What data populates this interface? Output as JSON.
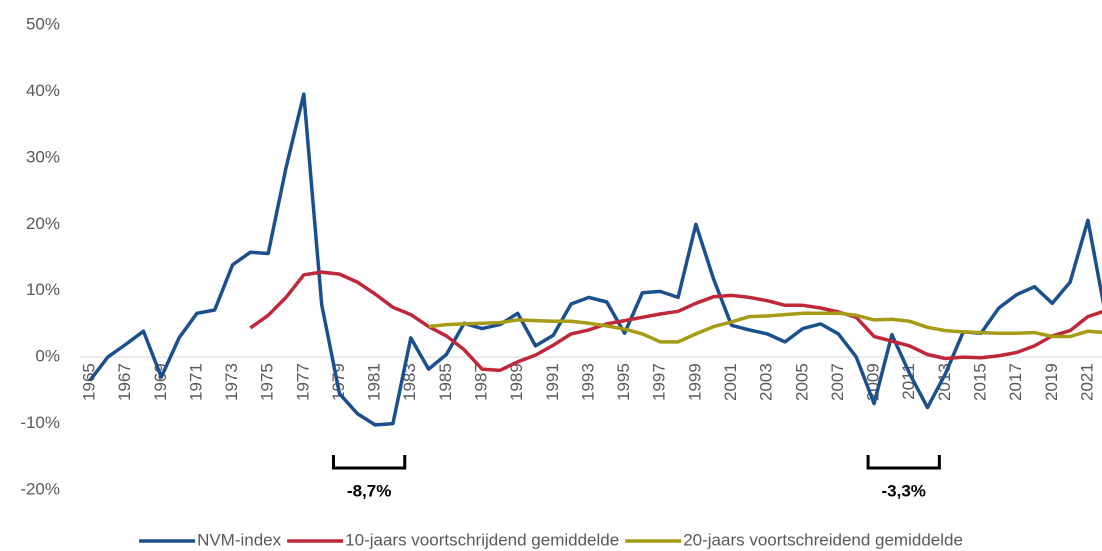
{
  "chart_data": {
    "type": "line",
    "categories": [
      "1965",
      null,
      "1967",
      null,
      "1969",
      null,
      "1971",
      null,
      "1973",
      null,
      "1975",
      null,
      "1977",
      null,
      "1979",
      null,
      "1981",
      null,
      "1983",
      null,
      "1985",
      null,
      "1987",
      null,
      "1989",
      null,
      "1991",
      null,
      "1993",
      null,
      "1995",
      null,
      "1997",
      null,
      "1999",
      null,
      "2001",
      null,
      "2003",
      null,
      "2005",
      null,
      "2007",
      null,
      "2009",
      null,
      "2011",
      null,
      "2013",
      null,
      "2015",
      null,
      "2017",
      null,
      "2019",
      null,
      "2021",
      null
    ],
    "series": [
      {
        "name": "NVM-index",
        "color": "#1b4f8e",
        "values": [
          -3.5,
          0,
          1.9,
          3.9,
          -3,
          2.9,
          6.6,
          7.1,
          13.9,
          15.8,
          15.6,
          28.5,
          39.6,
          7.9,
          -5.5,
          -8.5,
          -10.2,
          -10,
          2.9,
          -1.8,
          0.4,
          5.1,
          4.3,
          4.9,
          6.6,
          1.7,
          3.3,
          8,
          9,
          8.3,
          3.6,
          9.7,
          9.9,
          9,
          20,
          11.7,
          4.8,
          4.1,
          3.5,
          2.3,
          4.3,
          5,
          3.5,
          0,
          -7,
          3.4,
          -2.5,
          -7.6,
          -2.5,
          3.8,
          3.6,
          7.4,
          9.4,
          10.6,
          8.1,
          11.3,
          20.6,
          6.3
        ]
      },
      {
        "name": "10-jaars voortschrijdend gemiddelde",
        "color": "#c0283a",
        "values": [
          null,
          null,
          null,
          null,
          null,
          null,
          null,
          null,
          null,
          4.4,
          6.3,
          9,
          12.4,
          12.8,
          12.5,
          11.3,
          9.5,
          7.5,
          6.4,
          4.6,
          3.2,
          1.1,
          -1.8,
          -2,
          -0.7,
          0.3,
          1.8,
          3.5,
          4.1,
          5,
          5.5,
          6,
          6.5,
          6.9,
          8.1,
          9.1,
          9.3,
          9,
          8.5,
          7.8,
          7.8,
          7.4,
          6.8,
          6,
          3.1,
          2.4,
          1.7,
          0.4,
          -0.2,
          0,
          -0.1,
          0.2,
          0.7,
          1.7,
          3.2,
          4,
          6.1,
          7
        ]
      },
      {
        "name": "20-jaars voortschreidend gemiddelde",
        "color": "#a59b14",
        "values": [
          null,
          null,
          null,
          null,
          null,
          null,
          null,
          null,
          null,
          null,
          null,
          null,
          null,
          null,
          null,
          null,
          null,
          null,
          null,
          4.6,
          4.9,
          5,
          5.1,
          5.2,
          5.6,
          5.5,
          5.4,
          5.4,
          5.1,
          4.7,
          4.2,
          3.5,
          2.3,
          2.3,
          3.5,
          4.6,
          5.3,
          6.1,
          6.2,
          6.4,
          6.6,
          6.6,
          6.6,
          6.3,
          5.6,
          5.7,
          5.4,
          4.5,
          4,
          3.8,
          3.7,
          3.6,
          3.6,
          3.7,
          3.1,
          3.1,
          3.9,
          3.7
        ]
      }
    ],
    "ylim": [
      -20,
      50
    ],
    "yticks": [
      {
        "value": -20,
        "label": "-20%"
      },
      {
        "value": -10,
        "label": "-10%"
      },
      {
        "value": 0,
        "label": "0%"
      },
      {
        "value": 10,
        "label": "10%"
      },
      {
        "value": 20,
        "label": "20%"
      },
      {
        "value": 30,
        "label": "30%"
      },
      {
        "value": 40,
        "label": "40%"
      },
      {
        "value": 50,
        "label": "50%"
      }
    ],
    "grid": false,
    "legend": "bottom",
    "annotations": [
      {
        "text": "-8,7%",
        "from": "1979",
        "to": "1983"
      },
      {
        "text": "-3,3%",
        "from": "2009",
        "to": "2013"
      }
    ]
  }
}
